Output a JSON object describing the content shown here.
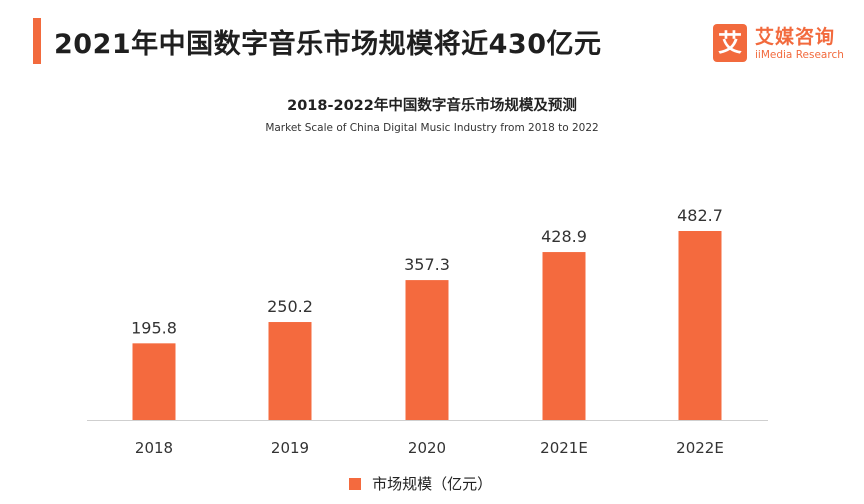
{
  "header": {
    "title": "2021年中国数字音乐市场规模将近430亿元"
  },
  "brand": {
    "badge_char": "艾",
    "name_cn": "艾媒咨询",
    "name_en": "iiMedia Research"
  },
  "colors": {
    "accent": "#f26a3d",
    "bar": "#f46a3e",
    "axis": "#cfcfcf"
  },
  "chart_data": {
    "type": "bar",
    "title": "2018-2022年中国数字音乐市场规模及预测",
    "subtitle": "Market Scale of China Digital Music Industry from 2018 to 2022",
    "categories": [
      "2018",
      "2019",
      "2020",
      "2021E",
      "2022E"
    ],
    "series": [
      {
        "name": "市场规模（亿元）",
        "values": [
          195.8,
          250.2,
          357.3,
          428.9,
          482.7
        ]
      }
    ],
    "value_labels": [
      "195.8",
      "250.2",
      "357.3",
      "428.9",
      "482.7"
    ],
    "ylim": [
      0,
      500
    ],
    "grid": false,
    "legend_position": "bottom-center"
  }
}
